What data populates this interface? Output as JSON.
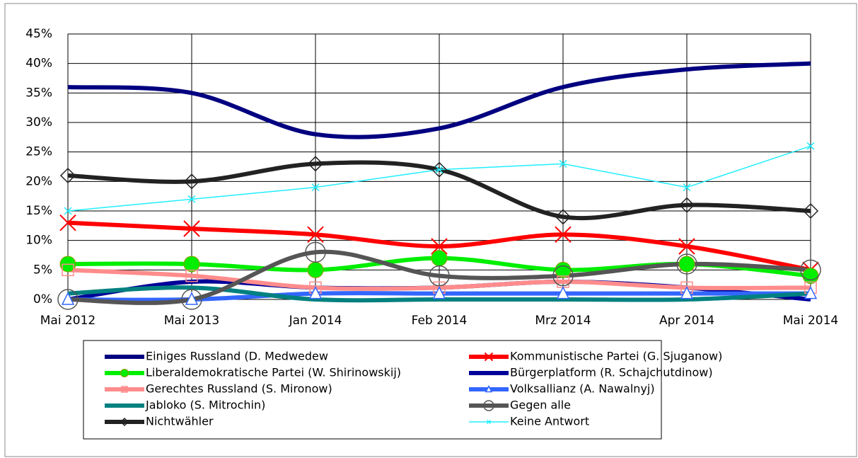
{
  "chart_data": {
    "type": "line",
    "categories": [
      "Mai 2012",
      "Mai 2013",
      "Jan 2014",
      "Feb 2014",
      "Mrz 2014",
      "Apr 2014",
      "Mai 2014"
    ],
    "ylim": [
      0,
      45
    ],
    "yticks": [
      {
        "value": 0,
        "label": "0%"
      },
      {
        "value": 5,
        "label": "5%"
      },
      {
        "value": 10,
        "label": "10%"
      },
      {
        "value": 15,
        "label": "15%"
      },
      {
        "value": 20,
        "label": "20%"
      },
      {
        "value": 25,
        "label": "25%"
      },
      {
        "value": 30,
        "label": "30%"
      },
      {
        "value": 35,
        "label": "35%"
      },
      {
        "value": 40,
        "label": "40%"
      },
      {
        "value": 45,
        "label": "45%"
      }
    ],
    "grid": true,
    "legend": "bottom",
    "series": [
      {
        "name": "Einiges Russland (D. Medwedew",
        "color": "#000080",
        "smooth": true,
        "marker": "none",
        "values": [
          36,
          35,
          28,
          29,
          36,
          39,
          40
        ]
      },
      {
        "name": "Kommunistische Partei (G. Sjuganow)",
        "color": "#ff0000",
        "smooth": true,
        "marker": "x",
        "values": [
          13,
          12,
          11,
          9,
          11,
          9,
          5
        ]
      },
      {
        "name": "Liberaldemokratische Partei (W. Shirinowskij)",
        "color": "#00ee00",
        "smooth": true,
        "marker": "dot",
        "values": [
          6,
          6,
          5,
          7,
          5,
          6,
          4
        ]
      },
      {
        "name": "Bürgerplatform (R. Schajchutdinow)",
        "color": "#000099",
        "smooth": true,
        "marker": "none",
        "values": [
          0,
          3,
          2,
          2,
          3,
          2,
          0
        ]
      },
      {
        "name": "Gerechtes Russland (S. Mironow)",
        "color": "#ff8c8c",
        "smooth": true,
        "marker": "square",
        "values": [
          5,
          4,
          2,
          2,
          3,
          2,
          2
        ]
      },
      {
        "name": "Volksallianz (A. Nawalnyj)",
        "color": "#3366ff",
        "smooth": true,
        "marker": "triangle",
        "values": [
          0,
          0,
          1,
          1,
          1,
          1,
          1
        ]
      },
      {
        "name": "Jabloko (S. Mitrochin)",
        "color": "#008080",
        "smooth": true,
        "marker": "none",
        "values": [
          1,
          2,
          0,
          0,
          0,
          0,
          1
        ]
      },
      {
        "name": "Gegen alle",
        "color": "#555555",
        "smooth": true,
        "marker": "circle",
        "values": [
          0,
          0,
          8,
          4,
          4,
          6,
          5
        ]
      },
      {
        "name": "Nichtwähler",
        "color": "#222222",
        "smooth": true,
        "marker": "diamond",
        "values": [
          21,
          20,
          23,
          22,
          14,
          16,
          15
        ]
      },
      {
        "name": "Keine Antwort",
        "color": "#22eeff",
        "smooth": false,
        "marker": "star",
        "values": [
          15,
          17,
          19,
          22,
          23,
          19,
          26
        ]
      }
    ]
  }
}
